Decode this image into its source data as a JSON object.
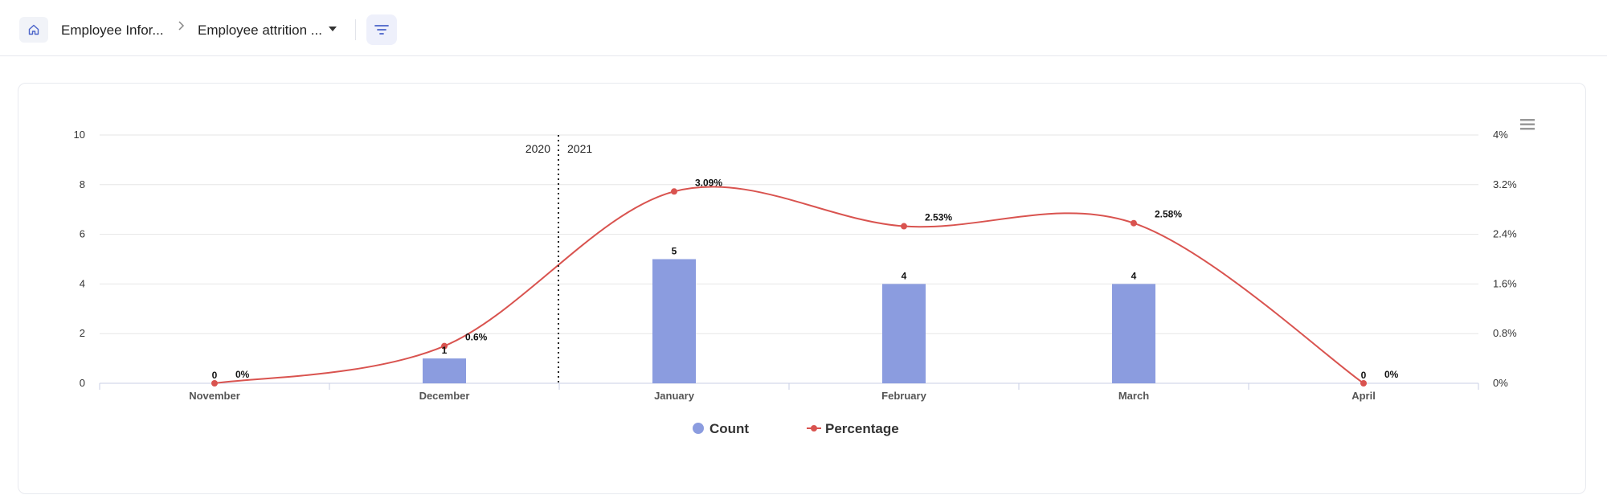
{
  "breadcrumb": {
    "home_icon": "home-icon",
    "item1": "Employee Infor...",
    "chevron_icon": "chevron-right-icon",
    "item2": "Employee attrition ...",
    "dropdown_icon": "caret-down-icon",
    "filter_icon": "filter-icon"
  },
  "chart_data": {
    "type": "bar",
    "categories": [
      "November",
      "December",
      "January",
      "February",
      "March",
      "April"
    ],
    "series": [
      {
        "name": "Count",
        "type": "bar",
        "values": [
          0,
          1,
          5,
          4,
          4,
          0
        ],
        "labels": [
          "0",
          "1",
          "5",
          "4",
          "4",
          "0"
        ],
        "color": "#8b9cdf"
      },
      {
        "name": "Percentage",
        "type": "line",
        "values": [
          0,
          0.6,
          3.09,
          2.53,
          2.58,
          0
        ],
        "labels": [
          "0%",
          "0.6%",
          "3.09%",
          "2.53%",
          "2.58%",
          "0%"
        ],
        "color": "#d9534f"
      }
    ],
    "y_left": {
      "ylim": [
        0,
        10
      ],
      "ticks": [
        "0",
        "2",
        "4",
        "6",
        "8",
        "10"
      ]
    },
    "y_right": {
      "ylim": [
        0,
        4
      ],
      "ticks": [
        "0%",
        "0.8%",
        "1.6%",
        "2.4%",
        "3.2%",
        "4%"
      ]
    },
    "year_divider": {
      "left": "2020",
      "right": "2021"
    },
    "grid": true,
    "legend_position": "bottom-center",
    "menu_icon": "hamburger-menu-icon"
  }
}
